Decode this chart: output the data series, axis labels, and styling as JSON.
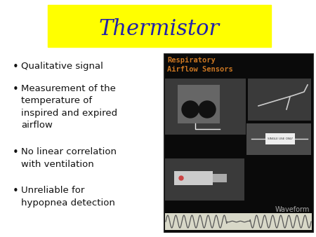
{
  "title": "Thermistor",
  "title_color": "#2222aa",
  "title_bg_color": "#ffff00",
  "title_fontsize": 22,
  "bg_color": "#ffffff",
  "bullet_points": [
    "Qualitative signal",
    "Measurement of the\ntemperature of\ninspired and expired\nairflow",
    "No linear correlation\nwith ventilation",
    "Unreliable for\nhypopnea detection"
  ],
  "bullet_color": "#111111",
  "bullet_fontsize": 9.5,
  "image_label_line1": "Respiratory",
  "image_label_line2": "Airflow Sensors",
  "waveform_label": "Waveform",
  "image_bg": "#0a0a0a",
  "image_label_color": "#cc7722",
  "waveform_label_color": "#aaaaaa",
  "waveform_bg": "#d8d8c8"
}
